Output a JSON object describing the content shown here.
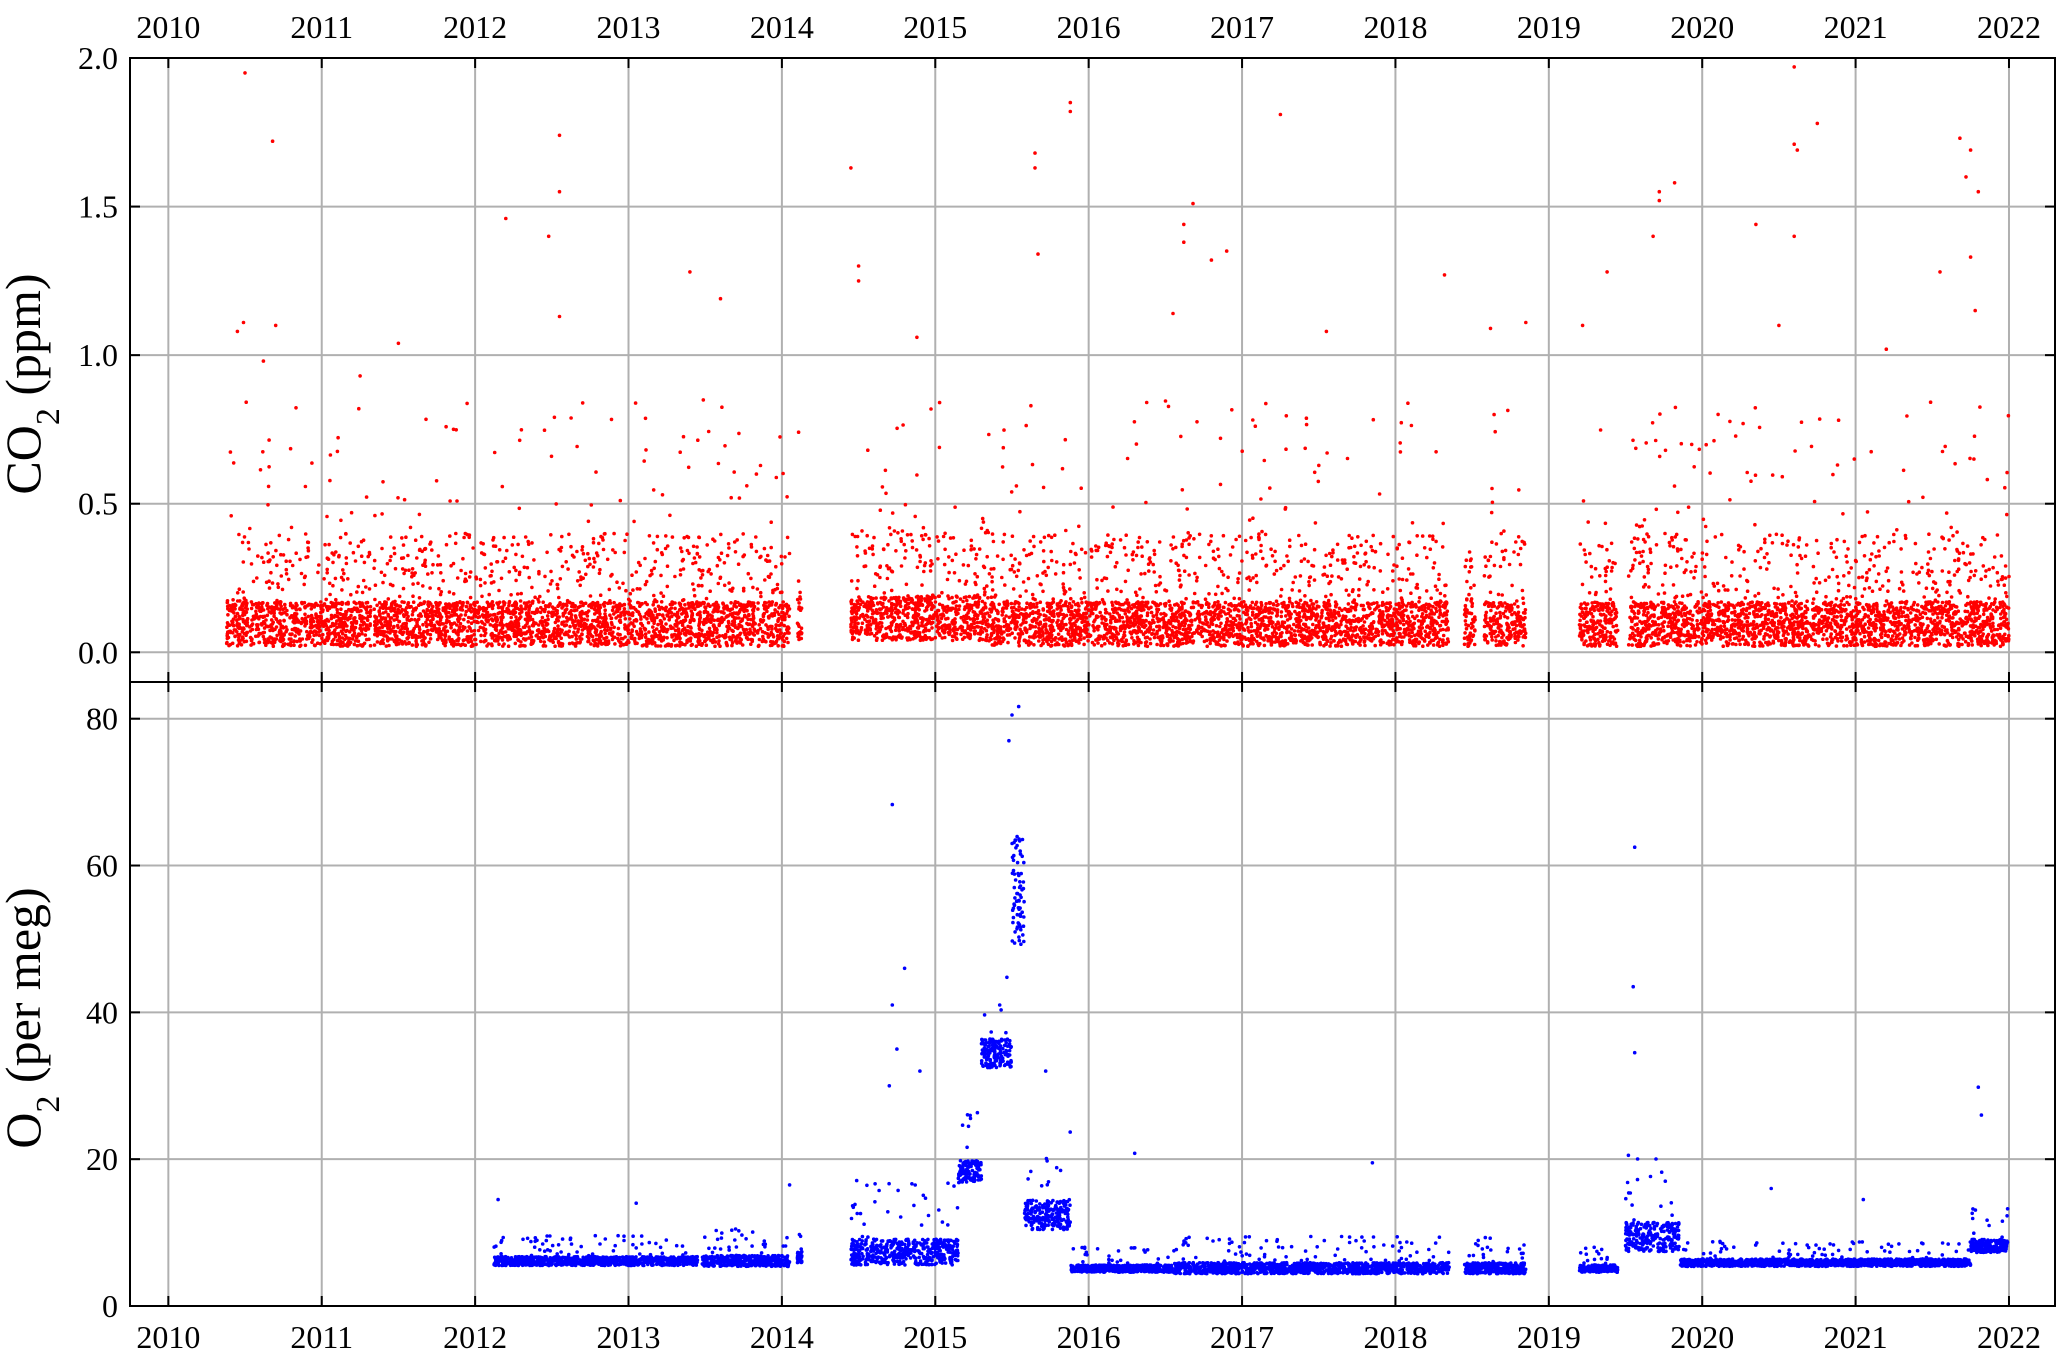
{
  "chart_data": [
    {
      "type": "scatter",
      "panel": "top",
      "ylabel": "CO",
      "ylabel_sub": "2",
      "ylabel_rest": " (ppm)",
      "xlim": [
        2009.75,
        2022.3
      ],
      "ylim": [
        -0.1,
        2.0
      ],
      "yticks": [
        0.0,
        0.5,
        1.0,
        1.5,
        2.0
      ],
      "ytick_labels": [
        "0.0",
        "0.5",
        "1.0",
        "1.5",
        "2.0"
      ],
      "xticks": [
        2010,
        2011,
        2012,
        2013,
        2014,
        2015,
        2016,
        2017,
        2018,
        2019,
        2020,
        2021,
        2022
      ],
      "xtick_labels": [
        "2010",
        "2011",
        "2012",
        "2013",
        "2014",
        "2015",
        "2016",
        "2017",
        "2018",
        "2019",
        "2020",
        "2021",
        "2022"
      ],
      "grid": true,
      "color": "#ff0000",
      "data_periods": [
        {
          "start": 2010.38,
          "end": 2011.32,
          "baseline": 0.05
        },
        {
          "start": 2011.34,
          "end": 2013.45,
          "baseline": 0.05
        },
        {
          "start": 2013.45,
          "end": 2014.05,
          "baseline": 0.05
        },
        {
          "start": 2014.1,
          "end": 2014.13,
          "baseline": 0.07
        },
        {
          "start": 2014.45,
          "end": 2015.35,
          "baseline": 0.07
        },
        {
          "start": 2015.35,
          "end": 2016.55,
          "baseline": 0.05
        },
        {
          "start": 2016.55,
          "end": 2018.35,
          "baseline": 0.05
        },
        {
          "start": 2018.45,
          "end": 2018.52,
          "baseline": 0.05
        },
        {
          "start": 2018.58,
          "end": 2018.85,
          "baseline": 0.05
        },
        {
          "start": 2019.2,
          "end": 2019.45,
          "baseline": 0.05
        },
        {
          "start": 2019.52,
          "end": 2022.0,
          "baseline": 0.05
        }
      ],
      "outliers": [
        {
          "x": 2010.5,
          "y": 1.95
        },
        {
          "x": 2010.68,
          "y": 1.72
        },
        {
          "x": 2010.45,
          "y": 1.08
        },
        {
          "x": 2010.49,
          "y": 1.11
        },
        {
          "x": 2010.7,
          "y": 1.1
        },
        {
          "x": 2010.62,
          "y": 0.98
        },
        {
          "x": 2011.25,
          "y": 0.93
        },
        {
          "x": 2011.5,
          "y": 1.04
        },
        {
          "x": 2012.2,
          "y": 1.46
        },
        {
          "x": 2012.48,
          "y": 1.4
        },
        {
          "x": 2012.55,
          "y": 1.74
        },
        {
          "x": 2012.55,
          "y": 1.55
        },
        {
          "x": 2012.55,
          "y": 1.13
        },
        {
          "x": 2013.4,
          "y": 1.28
        },
        {
          "x": 2013.6,
          "y": 1.19
        },
        {
          "x": 2014.45,
          "y": 1.63
        },
        {
          "x": 2014.5,
          "y": 1.3
        },
        {
          "x": 2014.5,
          "y": 1.25
        },
        {
          "x": 2014.88,
          "y": 1.06
        },
        {
          "x": 2015.65,
          "y": 1.68
        },
        {
          "x": 2015.65,
          "y": 1.63
        },
        {
          "x": 2015.88,
          "y": 1.85
        },
        {
          "x": 2015.88,
          "y": 1.82
        },
        {
          "x": 2015.67,
          "y": 1.34
        },
        {
          "x": 2016.55,
          "y": 1.14
        },
        {
          "x": 2016.68,
          "y": 1.51
        },
        {
          "x": 2016.62,
          "y": 1.44
        },
        {
          "x": 2016.62,
          "y": 1.38
        },
        {
          "x": 2016.8,
          "y": 1.32
        },
        {
          "x": 2016.9,
          "y": 1.35
        },
        {
          "x": 2017.25,
          "y": 1.81
        },
        {
          "x": 2017.55,
          "y": 1.08
        },
        {
          "x": 2018.32,
          "y": 1.27
        },
        {
          "x": 2018.62,
          "y": 1.09
        },
        {
          "x": 2018.85,
          "y": 1.11
        },
        {
          "x": 2019.22,
          "y": 1.1
        },
        {
          "x": 2019.38,
          "y": 1.28
        },
        {
          "x": 2019.72,
          "y": 1.55
        },
        {
          "x": 2019.68,
          "y": 1.4
        },
        {
          "x": 2019.82,
          "y": 1.58
        },
        {
          "x": 2019.72,
          "y": 1.52
        },
        {
          "x": 2020.35,
          "y": 1.44
        },
        {
          "x": 2020.5,
          "y": 1.1
        },
        {
          "x": 2020.6,
          "y": 1.97
        },
        {
          "x": 2020.6,
          "y": 1.71
        },
        {
          "x": 2020.62,
          "y": 1.69
        },
        {
          "x": 2020.75,
          "y": 1.78
        },
        {
          "x": 2020.6,
          "y": 1.4
        },
        {
          "x": 2021.2,
          "y": 1.02
        },
        {
          "x": 2021.55,
          "y": 1.28
        },
        {
          "x": 2021.68,
          "y": 1.73
        },
        {
          "x": 2021.75,
          "y": 1.69
        },
        {
          "x": 2021.72,
          "y": 1.6
        },
        {
          "x": 2021.8,
          "y": 1.55
        },
        {
          "x": 2021.75,
          "y": 1.33
        },
        {
          "x": 2021.78,
          "y": 1.15
        }
      ]
    },
    {
      "type": "scatter",
      "panel": "bottom",
      "ylabel": "O",
      "ylabel_sub": "2",
      "ylabel_rest": " (per meg)",
      "xlim": [
        2009.75,
        2022.3
      ],
      "ylim": [
        0,
        85
      ],
      "yticks": [
        0,
        20,
        40,
        60,
        80
      ],
      "ytick_labels": [
        "0",
        "20",
        "40",
        "60",
        "80"
      ],
      "xticks": [
        2010,
        2011,
        2012,
        2013,
        2014,
        2015,
        2016,
        2017,
        2018,
        2019,
        2020,
        2021,
        2022
      ],
      "xtick_labels": [
        "2010",
        "2011",
        "2012",
        "2013",
        "2014",
        "2015",
        "2016",
        "2017",
        "2018",
        "2019",
        "2020",
        "2021",
        "2022"
      ],
      "grid": true,
      "color": "#0000ff",
      "segments": [
        {
          "start": 2012.12,
          "end": 2013.45,
          "base": 6.0,
          "spread": 1.2
        },
        {
          "start": 2013.48,
          "end": 2014.05,
          "base": 6.0,
          "spread": 1.5
        },
        {
          "start": 2014.1,
          "end": 2014.13,
          "base": 6.5,
          "spread": 1.5
        },
        {
          "start": 2014.45,
          "end": 2015.15,
          "base": 7.0,
          "spread": 3.5
        },
        {
          "start": 2015.15,
          "end": 2015.3,
          "base": 18.0,
          "spread": 3.0
        },
        {
          "start": 2015.3,
          "end": 2015.5,
          "base": 34.0,
          "spread": 4.0
        },
        {
          "start": 2015.5,
          "end": 2015.58,
          "base": 55.0,
          "spread": 15.0
        },
        {
          "start": 2015.58,
          "end": 2015.88,
          "base": 12.0,
          "spread": 4.0
        },
        {
          "start": 2015.88,
          "end": 2016.55,
          "base": 5.0,
          "spread": 1.0
        },
        {
          "start": 2016.55,
          "end": 2018.35,
          "base": 5.0,
          "spread": 1.5
        },
        {
          "start": 2018.45,
          "end": 2018.85,
          "base": 5.0,
          "spread": 1.5
        },
        {
          "start": 2019.2,
          "end": 2019.45,
          "base": 5.0,
          "spread": 1.0
        },
        {
          "start": 2019.5,
          "end": 2019.85,
          "base": 9.0,
          "spread": 4.0
        },
        {
          "start": 2019.85,
          "end": 2021.75,
          "base": 5.8,
          "spread": 1.0
        },
        {
          "start": 2021.75,
          "end": 2022.0,
          "base": 8.0,
          "spread": 1.8
        }
      ],
      "outliers": [
        {
          "x": 2012.15,
          "y": 14.5
        },
        {
          "x": 2013.05,
          "y": 14.0
        },
        {
          "x": 2014.05,
          "y": 16.5
        },
        {
          "x": 2014.72,
          "y": 68.3
        },
        {
          "x": 2014.8,
          "y": 46.0
        },
        {
          "x": 2014.72,
          "y": 41.0
        },
        {
          "x": 2014.75,
          "y": 35.0
        },
        {
          "x": 2014.9,
          "y": 32.0
        },
        {
          "x": 2014.7,
          "y": 30.0
        },
        {
          "x": 2015.5,
          "y": 80.5
        },
        {
          "x": 2015.48,
          "y": 77.0
        },
        {
          "x": 2015.42,
          "y": 41.0
        },
        {
          "x": 2015.72,
          "y": 32.0
        },
        {
          "x": 2016.3,
          "y": 20.8
        },
        {
          "x": 2017.85,
          "y": 19.5
        },
        {
          "x": 2019.56,
          "y": 62.5
        },
        {
          "x": 2019.55,
          "y": 43.5
        },
        {
          "x": 2019.56,
          "y": 34.5
        },
        {
          "x": 2020.45,
          "y": 16.0
        },
        {
          "x": 2021.05,
          "y": 14.5
        },
        {
          "x": 2021.8,
          "y": 29.8
        },
        {
          "x": 2021.82,
          "y": 26.0
        }
      ]
    }
  ]
}
